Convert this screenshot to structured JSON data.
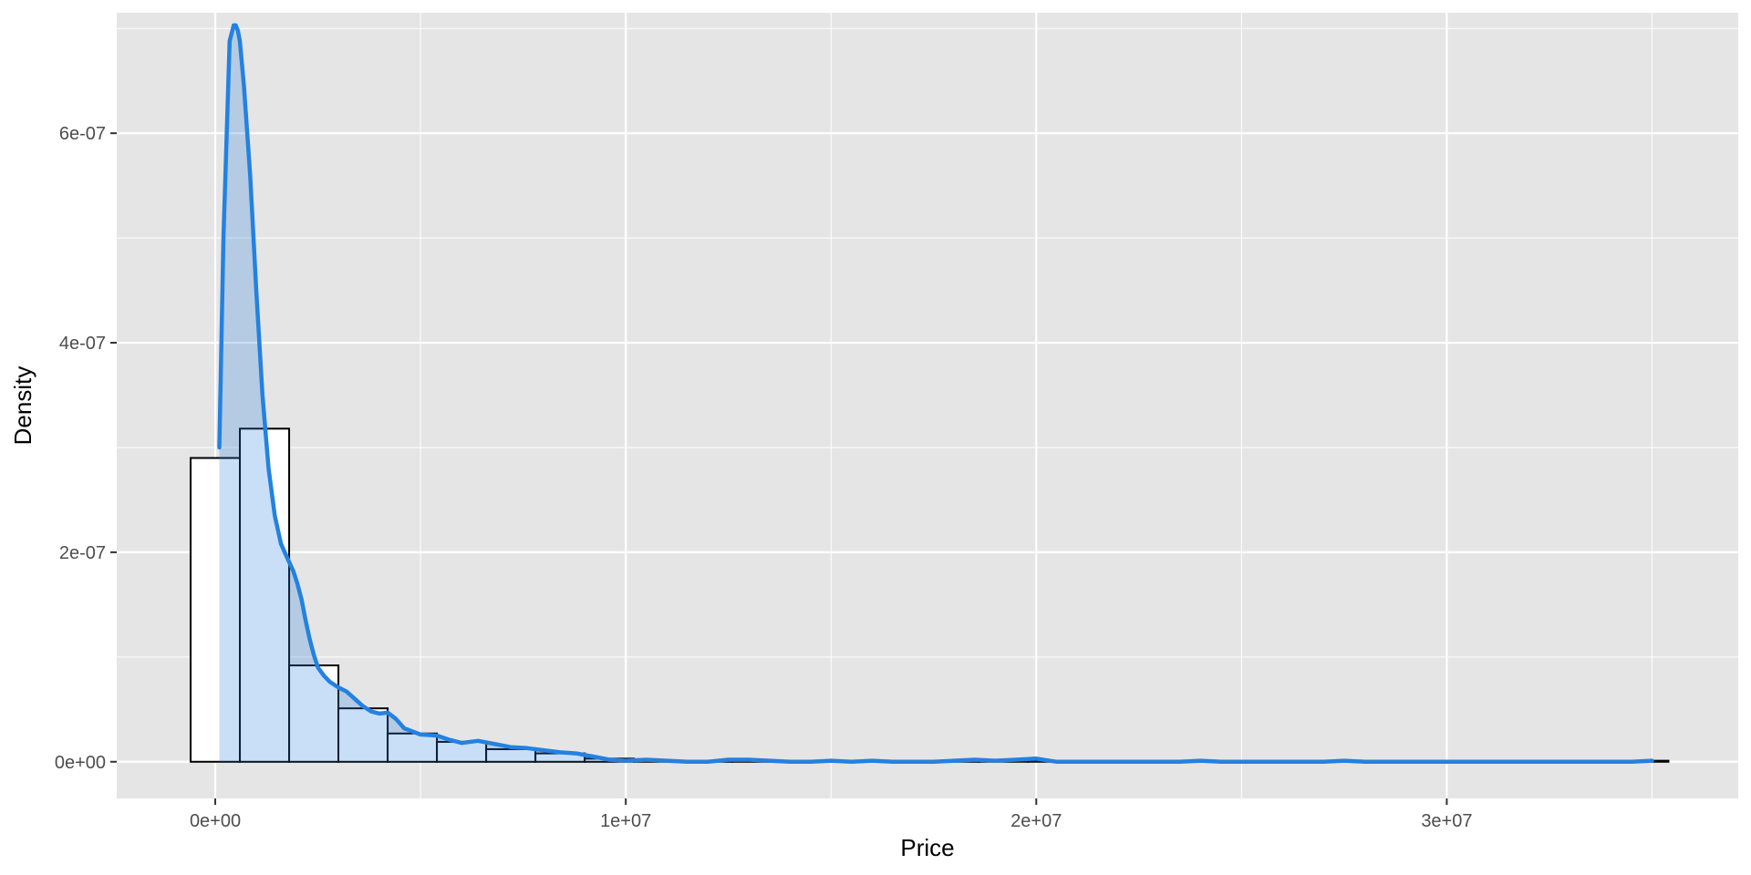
{
  "chart_data": {
    "type": "histogram",
    "title": "",
    "xlabel": "Price",
    "ylabel": "Density",
    "xlim": [
      -2400000,
      37100000
    ],
    "ylim": [
      -3.5e-08,
      7.15e-07
    ],
    "x_ticks": [
      {
        "value": 0,
        "label": "0e+00"
      },
      {
        "value": 10000000,
        "label": "1e+07"
      },
      {
        "value": 20000000,
        "label": "2e+07"
      },
      {
        "value": 30000000,
        "label": "3e+07"
      }
    ],
    "y_ticks": [
      {
        "value": 0,
        "label": "0e+00"
      },
      {
        "value": 2e-07,
        "label": "2e-07"
      },
      {
        "value": 4e-07,
        "label": "4e-07"
      },
      {
        "value": 6e-07,
        "label": "6e-07"
      }
    ],
    "grid": true,
    "colors": {
      "panel_background": "#E5E5E5",
      "grid_major": "#FFFFFF",
      "bar_fill": "#FFFFFF",
      "bar_outline": "#000000",
      "density_line": "#2481E0",
      "density_fill": "#C9DFF5"
    },
    "histogram_bins": [
      {
        "x_start": -600000,
        "x_end": 600000,
        "density": 2.9e-07
      },
      {
        "x_start": 600000,
        "x_end": 1800000,
        "density": 3.18e-07
      },
      {
        "x_start": 1800000,
        "x_end": 3000000,
        "density": 9.2e-08
      },
      {
        "x_start": 3000000,
        "x_end": 4200000,
        "density": 5.1e-08
      },
      {
        "x_start": 4200000,
        "x_end": 5400000,
        "density": 2.7e-08
      },
      {
        "x_start": 5400000,
        "x_end": 6600000,
        "density": 1.9e-08
      },
      {
        "x_start": 6600000,
        "x_end": 7800000,
        "density": 1.2e-08
      },
      {
        "x_start": 7800000,
        "x_end": 9000000,
        "density": 8e-09
      },
      {
        "x_start": 9000000,
        "x_end": 10200000,
        "density": 3e-09
      },
      {
        "x_start": 10200000,
        "x_end": 11400000,
        "density": 1e-09
      },
      {
        "x_start": 11400000,
        "x_end": 12600000,
        "density": 1e-09
      },
      {
        "x_start": 12600000,
        "x_end": 13800000,
        "density": 1e-09
      },
      {
        "x_start": 13800000,
        "x_end": 15000000,
        "density": 0
      },
      {
        "x_start": 15000000,
        "x_end": 16200000,
        "density": 0
      },
      {
        "x_start": 16200000,
        "x_end": 17400000,
        "density": 0
      },
      {
        "x_start": 17400000,
        "x_end": 18600000,
        "density": 1e-09
      },
      {
        "x_start": 18600000,
        "x_end": 19800000,
        "density": 1e-09
      },
      {
        "x_start": 19800000,
        "x_end": 21000000,
        "density": 1e-09
      },
      {
        "x_start": 21000000,
        "x_end": 22200000,
        "density": 0
      },
      {
        "x_start": 22200000,
        "x_end": 23400000,
        "density": 0
      },
      {
        "x_start": 23400000,
        "x_end": 24600000,
        "density": 0
      },
      {
        "x_start": 24600000,
        "x_end": 25800000,
        "density": 0
      },
      {
        "x_start": 25800000,
        "x_end": 27000000,
        "density": 0
      },
      {
        "x_start": 27000000,
        "x_end": 28200000,
        "density": 0
      },
      {
        "x_start": 28200000,
        "x_end": 29400000,
        "density": 0
      },
      {
        "x_start": 29400000,
        "x_end": 30600000,
        "density": 0
      },
      {
        "x_start": 30600000,
        "x_end": 31800000,
        "density": 0
      },
      {
        "x_start": 31800000,
        "x_end": 33000000,
        "density": 0
      },
      {
        "x_start": 33000000,
        "x_end": 34200000,
        "density": 0
      },
      {
        "x_start": 34200000,
        "x_end": 35400000,
        "density": 1e-09
      }
    ],
    "density_curve": {
      "x": [
        100000,
        200000,
        350000,
        450000,
        500000,
        550000,
        600000,
        700000,
        850000,
        1000000,
        1150000,
        1300000,
        1450000,
        1600000,
        1750000,
        1900000,
        2000000,
        2100000,
        2200000,
        2300000,
        2400000,
        2500000,
        2650000,
        2800000,
        3000000,
        3200000,
        3400000,
        3600000,
        3800000,
        4000000,
        4200000,
        4400000,
        4600000,
        5000000,
        5400000,
        5700000,
        6000000,
        6400000,
        6800000,
        7200000,
        7600000,
        8000000,
        8400000,
        8800000,
        9200000,
        9600000,
        10000000,
        10500000,
        11000000,
        11500000,
        12000000,
        12500000,
        13000000,
        13500000,
        14000000,
        14500000,
        15000000,
        15500000,
        16000000,
        16500000,
        17000000,
        17500000,
        18000000,
        18500000,
        19000000,
        19500000,
        20000000,
        20500000,
        21000000,
        22000000,
        23000000,
        23500000,
        24000000,
        24500000,
        25000000,
        26000000,
        27000000,
        27500000,
        28000000,
        29000000,
        30000000,
        31000000,
        32000000,
        33000000,
        34000000,
        34500000,
        35000000
      ],
      "y": [
        3e-07,
        5e-07,
        6.88e-07,
        7.03e-07,
        7.03e-07,
        6.98e-07,
        6.88e-07,
        6.45e-07,
        5.6e-07,
        4.5e-07,
        3.5e-07,
        2.8e-07,
        2.35e-07,
        2.08e-07,
        1.95e-07,
        1.82e-07,
        1.7e-07,
        1.55e-07,
        1.35e-07,
        1.17e-07,
        1.02e-07,
        9e-08,
        8.2e-08,
        7.6e-08,
        7.1e-08,
        6.7e-08,
        6e-08,
        5.3e-08,
        4.8e-08,
        4.6e-08,
        4.7e-08,
        4.1e-08,
        3.2e-08,
        2.6e-08,
        2.5e-08,
        2.1e-08,
        1.8e-08,
        2e-08,
        1.7e-08,
        1.4e-08,
        1.3e-08,
        1.1e-08,
        9e-09,
        8e-09,
        5e-09,
        2e-09,
        1e-09,
        2e-09,
        1e-09,
        0,
        0,
        2e-09,
        2e-09,
        1e-09,
        0,
        0,
        1e-09,
        0,
        1e-09,
        0,
        0,
        0,
        1e-09,
        2e-09,
        1e-09,
        2e-09,
        3e-09,
        0,
        0,
        0,
        0,
        0,
        1e-09,
        0,
        0,
        0,
        0,
        1e-09,
        0,
        0,
        0,
        0,
        0,
        0,
        0,
        0,
        1e-09
      ]
    }
  }
}
